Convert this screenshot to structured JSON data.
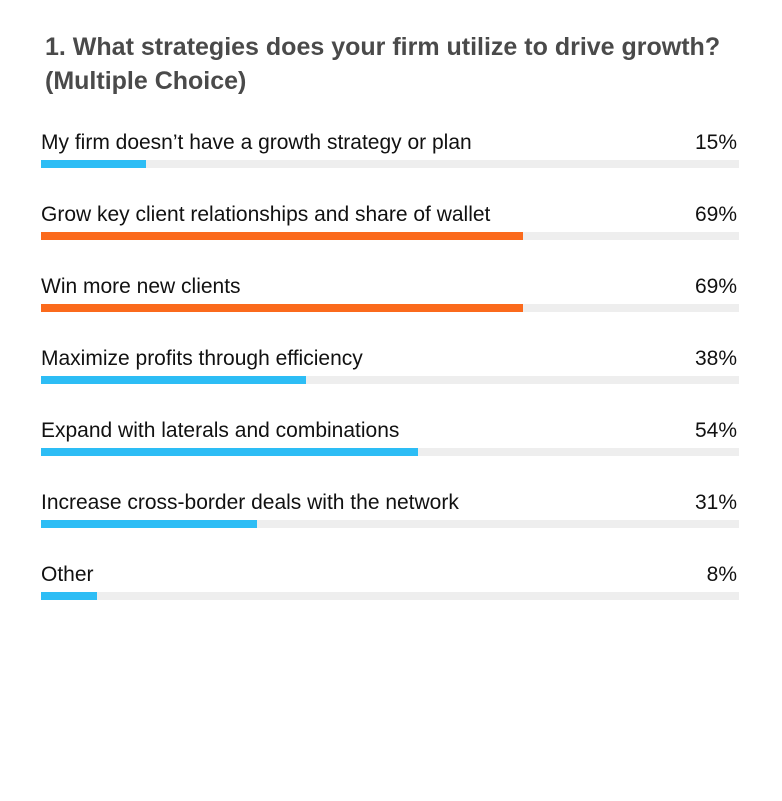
{
  "question": {
    "title": "1. What strategies does your firm utilize to drive growth?(Multiple Choice)"
  },
  "colors": {
    "default_bar": "#2dbdf5",
    "highlight_bar": "#fb6a1c",
    "track": "#eeeeee"
  },
  "chart_data": {
    "type": "bar",
    "orientation": "horizontal",
    "categories": [
      "My firm doesn’t have a growth strategy or plan",
      "Grow key client relationships and share of wallet",
      "Win more new clients",
      "Maximize profits through efficiency",
      "Expand with laterals and combinations",
      "Increase cross-border deals with the network",
      "Other"
    ],
    "values": [
      15,
      69,
      69,
      38,
      54,
      31,
      8
    ],
    "value_labels": [
      "15%",
      "69%",
      "69%",
      "38%",
      "54%",
      "31%",
      "8%"
    ],
    "highlighted": [
      false,
      true,
      true,
      false,
      false,
      false,
      false
    ],
    "xlim": [
      0,
      100
    ],
    "unit": "%",
    "grid": false
  }
}
